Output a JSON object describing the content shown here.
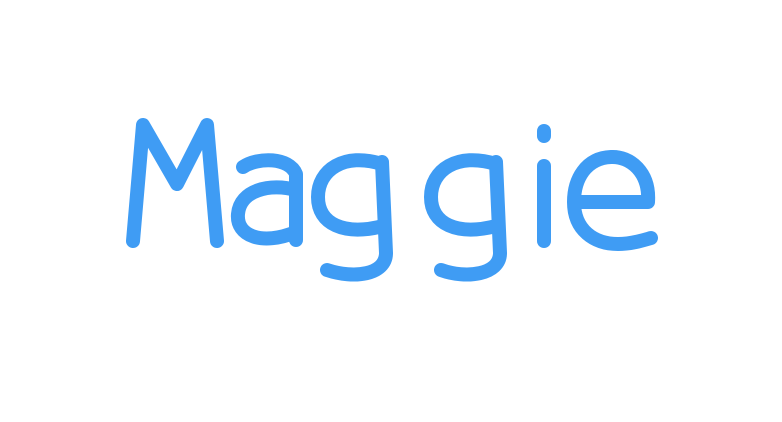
{
  "word": "Maggie",
  "text_color": "#3f9cf4",
  "background_color": "#ffffff"
}
